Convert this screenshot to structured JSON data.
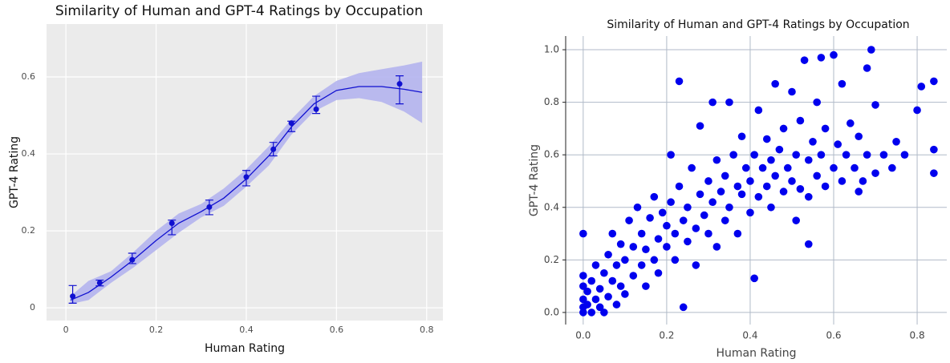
{
  "chart_data": [
    {
      "type": "smooth",
      "title": "Similarity of Human and GPT-4 Ratings by Occupation",
      "xlabel": "Human Rating",
      "ylabel": "GPT-4 Rating",
      "color": "#1010d0",
      "band_color": "#b4b4ee",
      "background": "#ebebeb",
      "grid": true,
      "xlim": [
        -0.043,
        0.836
      ],
      "ylim": [
        -0.033,
        0.7375
      ],
      "xticks": [
        0,
        0.2,
        0.4,
        0.6,
        0.8
      ],
      "yticks": [
        0,
        0.2,
        0.4,
        0.6
      ],
      "x": [
        0.01,
        0.05,
        0.1,
        0.15,
        0.2,
        0.25,
        0.3,
        0.35,
        0.4,
        0.45,
        0.5,
        0.55,
        0.6,
        0.65,
        0.7,
        0.75,
        0.79
      ],
      "values": [
        0.02,
        0.04,
        0.08,
        0.125,
        0.175,
        0.22,
        0.25,
        0.285,
        0.335,
        0.395,
        0.47,
        0.53,
        0.565,
        0.575,
        0.575,
        0.568,
        0.56
      ],
      "ci_lower": [
        0.01,
        0.02,
        0.065,
        0.105,
        0.15,
        0.195,
        0.235,
        0.265,
        0.315,
        0.37,
        0.45,
        0.51,
        0.54,
        0.545,
        0.535,
        0.51,
        0.48
      ],
      "ci_upper": [
        0.03,
        0.07,
        0.095,
        0.145,
        0.2,
        0.245,
        0.27,
        0.31,
        0.36,
        0.42,
        0.49,
        0.55,
        0.59,
        0.61,
        0.62,
        0.63,
        0.64
      ],
      "points": {
        "x": [
          0.015,
          0.075,
          0.147,
          0.235,
          0.318,
          0.4,
          0.46,
          0.5,
          0.555,
          0.74
        ],
        "values": [
          0.03,
          0.065,
          0.125,
          0.22,
          0.262,
          0.34,
          0.412,
          0.48,
          0.516,
          0.582
        ],
        "lower": [
          0.012,
          0.057,
          0.115,
          0.19,
          0.242,
          0.317,
          0.395,
          0.458,
          0.505,
          0.53
        ],
        "upper": [
          0.058,
          0.072,
          0.142,
          0.228,
          0.28,
          0.357,
          0.43,
          0.485,
          0.55,
          0.603
        ]
      }
    },
    {
      "type": "scatter",
      "title": "Similarity of Human and GPT-4 Ratings by Occupation",
      "xlabel": "Human Rating",
      "ylabel": "GPT-4 Rating",
      "color": "#0000ee",
      "grid": true,
      "xlim": [
        -0.042,
        0.871
      ],
      "ylim": [
        -0.046,
        1.052
      ],
      "xticks": [
        {
          "value": 0,
          "label": "0.0"
        },
        0.2,
        0.4,
        0.6,
        0.8
      ],
      "yticks": [
        {
          "value": 0,
          "label": "0.0"
        },
        0.2,
        0.4,
        0.6,
        0.8,
        {
          "value": 1,
          "label": "1.0"
        }
      ],
      "x": [
        0,
        0,
        0,
        0,
        0,
        0,
        0.01,
        0.01,
        0.02,
        0.02,
        0.03,
        0.03,
        0.04,
        0.04,
        0.05,
        0.05,
        0.06,
        0.06,
        0.07,
        0.07,
        0.08,
        0.08,
        0.09,
        0.09,
        0.1,
        0.1,
        0.11,
        0.12,
        0.12,
        0.13,
        0.14,
        0.14,
        0.15,
        0.15,
        0.16,
        0.17,
        0.17,
        0.18,
        0.18,
        0.19,
        0.2,
        0.2,
        0.21,
        0.21,
        0.22,
        0.22,
        0.23,
        0.24,
        0.24,
        0.23,
        0.25,
        0.25,
        0.26,
        0.27,
        0.27,
        0.28,
        0.28,
        0.29,
        0.3,
        0.3,
        0.31,
        0.31,
        0.32,
        0.32,
        0.33,
        0.34,
        0.34,
        0.35,
        0.35,
        0.36,
        0.37,
        0.37,
        0.38,
        0.38,
        0.39,
        0.4,
        0.4,
        0.41,
        0.41,
        0.42,
        0.42,
        0.43,
        0.44,
        0.44,
        0.45,
        0.45,
        0.46,
        0.46,
        0.47,
        0.48,
        0.48,
        0.49,
        0.5,
        0.5,
        0.51,
        0.51,
        0.52,
        0.52,
        0.53,
        0.54,
        0.54,
        0.55,
        0.56,
        0.56,
        0.57,
        0.58,
        0.58,
        0.6,
        0.6,
        0.61,
        0.62,
        0.62,
        0.63,
        0.64,
        0.65,
        0.66,
        0.67,
        0.68,
        0.68,
        0.69,
        0.7,
        0.7,
        0.72,
        0.74,
        0.75,
        0.77,
        0.8,
        0.81,
        0.84,
        0.84,
        0.84,
        0.54,
        0.66,
        0.57
      ],
      "values": [
        0,
        0.02,
        0.05,
        0.1,
        0.14,
        0.3,
        0.03,
        0.08,
        0,
        0.12,
        0.05,
        0.18,
        0.02,
        0.09,
        0,
        0.15,
        0.06,
        0.22,
        0.12,
        0.3,
        0.03,
        0.18,
        0.1,
        0.26,
        0.07,
        0.2,
        0.35,
        0.14,
        0.25,
        0.4,
        0.18,
        0.3,
        0.1,
        0.24,
        0.36,
        0.2,
        0.44,
        0.28,
        0.15,
        0.38,
        0.25,
        0.33,
        0.42,
        0.6,
        0.2,
        0.3,
        0.48,
        0.02,
        0.35,
        0.88,
        0.27,
        0.4,
        0.55,
        0.32,
        0.18,
        0.45,
        0.71,
        0.37,
        0.3,
        0.5,
        0.8,
        0.42,
        0.25,
        0.58,
        0.46,
        0.35,
        0.52,
        0.8,
        0.4,
        0.6,
        0.3,
        0.48,
        0.45,
        0.67,
        0.55,
        0.38,
        0.5,
        0.13,
        0.6,
        0.44,
        0.77,
        0.55,
        0.48,
        0.66,
        0.4,
        0.58,
        0.87,
        0.52,
        0.62,
        0.46,
        0.7,
        0.55,
        0.5,
        0.84,
        0.35,
        0.6,
        0.47,
        0.73,
        0.96,
        0.58,
        0.44,
        0.65,
        0.52,
        0.8,
        0.6,
        0.48,
        0.7,
        0.98,
        0.55,
        0.64,
        0.5,
        0.87,
        0.6,
        0.72,
        0.55,
        0.67,
        0.5,
        0.93,
        0.6,
        1.0,
        0.53,
        0.79,
        0.6,
        0.55,
        0.65,
        0.6,
        0.77,
        0.86,
        0.88,
        0.62,
        0.53,
        0.26,
        0.46,
        0.97
      ]
    }
  ]
}
